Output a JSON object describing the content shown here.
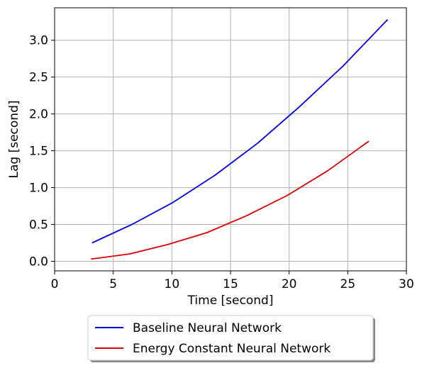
{
  "chart_data": {
    "type": "line",
    "xlabel": "Time [second]",
    "ylabel": "Lag [second]",
    "xlim": [
      0,
      30
    ],
    "ylim": [
      -0.13,
      3.44
    ],
    "x_ticks": [
      0,
      5,
      10,
      15,
      20,
      25,
      30
    ],
    "x_tick_labels": [
      "0",
      "5",
      "10",
      "15",
      "20",
      "25",
      "30"
    ],
    "y_ticks": [
      0.0,
      0.5,
      1.0,
      1.5,
      2.0,
      2.5,
      3.0
    ],
    "y_tick_labels": [
      "0.0",
      "0.5",
      "1.0",
      "1.5",
      "2.0",
      "2.5",
      "3.0"
    ],
    "grid": true,
    "legend_position": "bottom-outside",
    "series": [
      {
        "name": "Baseline Neural Network",
        "color": "#0000dd",
        "x": [
          3.2,
          6.6,
          10.1,
          13.7,
          17.3,
          20.9,
          24.6,
          28.4
        ],
        "y": [
          0.25,
          0.5,
          0.8,
          1.17,
          1.6,
          2.1,
          2.65,
          3.28
        ]
      },
      {
        "name": "Energy Constant Neural Network",
        "color": "#dd0000",
        "x": [
          3.1,
          6.4,
          9.7,
          13.0,
          16.4,
          19.8,
          23.3,
          26.8
        ],
        "y": [
          0.03,
          0.1,
          0.23,
          0.39,
          0.62,
          0.89,
          1.23,
          1.63
        ]
      }
    ]
  }
}
